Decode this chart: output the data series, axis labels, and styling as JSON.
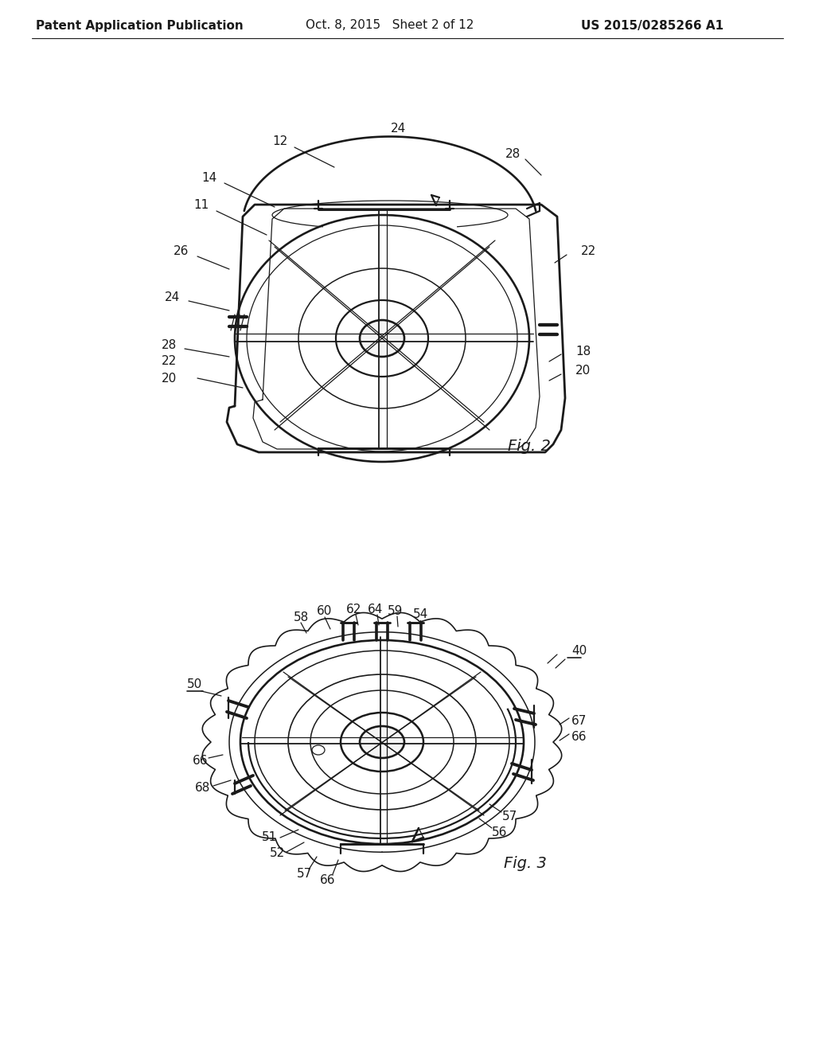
{
  "background_color": "#ffffff",
  "header_left": "Patent Application Publication",
  "header_center": "Oct. 8, 2015   Sheet 2 of 12",
  "header_right": "US 2015/0285266 A1",
  "line_color": "#1a1a1a",
  "lw": 1.6,
  "tlw": 0.9,
  "afs": 11,
  "lfs": 14,
  "header_fontsize": 11,
  "fig2_label": "Fig. 2",
  "fig3_label": "Fig. 3"
}
